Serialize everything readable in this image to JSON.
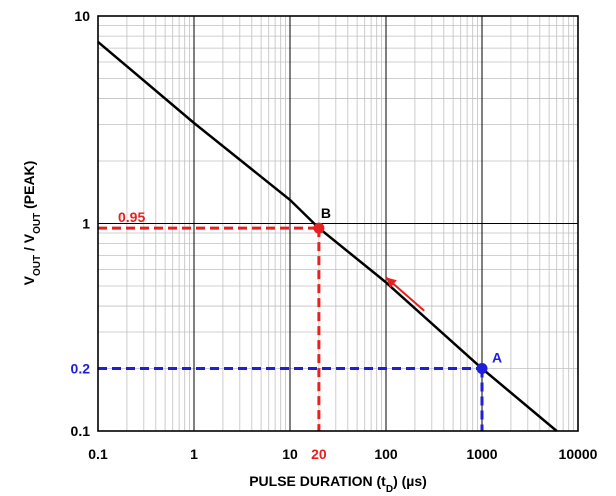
{
  "chart_data": {
    "type": "line",
    "xlabel": "PULSE DURATION (t_D) (µs)",
    "ylabel": "V_OUT / V_OUT (PEAK)",
    "x_scale": "log",
    "y_scale": "log",
    "xlim": [
      0.1,
      10000
    ],
    "ylim": [
      0.1,
      10
    ],
    "grid": true,
    "x_ticks": [
      "0.1",
      "1",
      "10",
      "100",
      "1000",
      "10000"
    ],
    "y_ticks": [
      "0.1",
      "1",
      "10"
    ],
    "series": [
      {
        "color": "#000000",
        "x": [
          0.1,
          1,
          10,
          20,
          100,
          1000,
          6000
        ],
        "y": [
          7.5,
          3.05,
          1.3,
          0.95,
          0.52,
          0.2,
          0.1
        ]
      }
    ],
    "annotations": {
      "B": {
        "label": "B",
        "x": 20,
        "y": 0.95,
        "x_label": "20",
        "y_label": "0.95",
        "color": "#e8201f"
      },
      "A": {
        "label": "A",
        "x": 1000,
        "y": 0.2,
        "y_label": "0.2",
        "color": "#1f1fd8"
      },
      "arrow_color": "#e8201f"
    },
    "colors": {
      "red": "#e8201f",
      "blue": "#1f1fd8",
      "grid": "#c0c0c0"
    }
  }
}
